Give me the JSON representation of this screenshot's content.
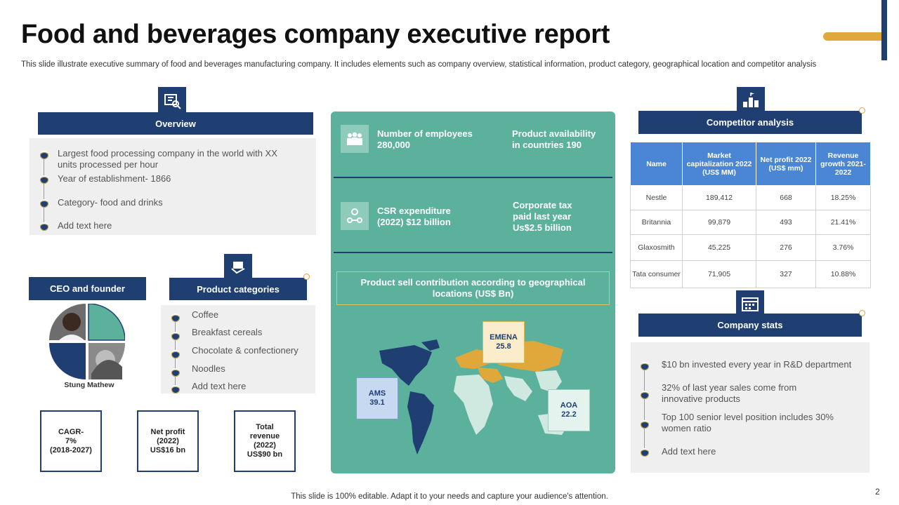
{
  "page": {
    "title": "Food and beverages company executive report",
    "subtitle": "This slide illustrate executive summary of food and beverages manufacturing company. It includes elements such as company overview, statistical information, product category, geographical location and competitor analysis",
    "footer": "This slide is 100% editable. Adapt it to your needs and capture your audience's attention.",
    "page_number": "2"
  },
  "overview": {
    "header": "Overview",
    "items": [
      "Largest food processing company in the world with XX units processed per hour",
      "Year of establishment- 1866",
      "Category- food and drinks",
      "Add text here"
    ]
  },
  "ceo": {
    "header": "CEO and founder",
    "name": "Stung Mathew"
  },
  "products": {
    "header": "Product categories",
    "items": [
      "Coffee",
      "Breakfast cereals",
      "Chocolate & confectionery",
      "Noodles",
      "Add text here"
    ]
  },
  "kpis": [
    "CAGR-\n7%\n(2018-2027)",
    "Net profit\n(2022)\nUS$16 bn",
    "Total\nrevenue\n(2022)\nUS$90 bn"
  ],
  "center": {
    "employees": "Number  of employees\n280,000",
    "availability": "Product availability\nin countries 190",
    "csr": "CSR expenditure\n(2022) $12 billion",
    "tax": "Corporate tax\npaid last year\nUs$2.5  billion",
    "map_title": "Product sell contribution  according  to geographical\nlocations (US$ Bn)",
    "regions": [
      {
        "name": "AMS",
        "value": "39.1"
      },
      {
        "name": "EMENA",
        "value": "25.8"
      },
      {
        "name": "AOA",
        "value": "22.2"
      }
    ]
  },
  "competitor": {
    "header": "Competitor analysis",
    "columns": [
      "Name",
      "Market capitalization 2022 (US$ MM)",
      "Net profit 2022 (US$ mm)",
      "Revenue growth 2021-2022"
    ],
    "rows": [
      [
        "Nestle",
        "189,412",
        "668",
        "18.25%"
      ],
      [
        "Britannia",
        "99,879",
        "493",
        "21.41%"
      ],
      [
        "Glaxosmith",
        "45,225",
        "276",
        "3.76%"
      ],
      [
        "Tata consumer",
        "71,905",
        "327",
        "10.88%"
      ]
    ]
  },
  "stats": {
    "header": "Company stats",
    "items": [
      "$10 bn invested  every  year in R&D department",
      "32% of last year sales come from innovative  products",
      "Top 100 senior level position includes 30% women ratio",
      "Add text here"
    ]
  },
  "colors": {
    "navy": "#1f3f73",
    "green": "#5cb19c",
    "gold": "#e0a83a",
    "blue": "#4a86d4"
  }
}
